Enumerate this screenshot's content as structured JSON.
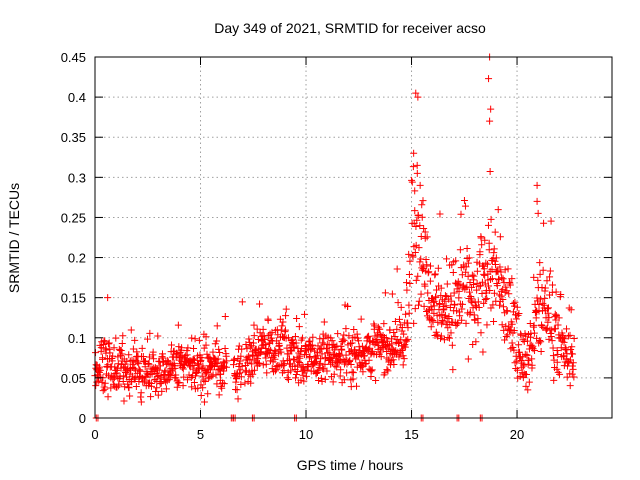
{
  "chart_data": {
    "type": "scatter",
    "title": "Day 349 of 2021, SRMTID for receiver acso",
    "xlabel": "GPS time / hours",
    "ylabel": "SRMTID / TECUs",
    "xlim": [
      0,
      24.5
    ],
    "ylim": [
      0,
      0.45
    ],
    "x_ticks": [
      0,
      5,
      10,
      15,
      20
    ],
    "x_tick_labels": [
      "0",
      "5",
      "10",
      "15",
      "20"
    ],
    "y_ticks": [
      0,
      0.05,
      0.1,
      0.15,
      0.2,
      0.25,
      0.3,
      0.35,
      0.4,
      0.45
    ],
    "y_tick_labels": [
      "0",
      "0.05",
      "0.1",
      "0.15",
      "0.2",
      "0.25",
      "0.3",
      "0.35",
      "0.4",
      "0.45"
    ],
    "grid": true,
    "marker": "+",
    "series": [
      {
        "name": "SRMTID",
        "color": "#ff0000",
        "profile": [
          {
            "t": 0.0,
            "base": 0.06,
            "spread": 0.025
          },
          {
            "t": 0.5,
            "base": 0.07,
            "spread": 0.035
          },
          {
            "t": 1.0,
            "base": 0.06,
            "spread": 0.025
          },
          {
            "t": 2.0,
            "base": 0.055,
            "spread": 0.025
          },
          {
            "t": 3.0,
            "base": 0.06,
            "spread": 0.03
          },
          {
            "t": 4.0,
            "base": 0.065,
            "spread": 0.03
          },
          {
            "t": 5.0,
            "base": 0.065,
            "spread": 0.03
          },
          {
            "t": 6.0,
            "base": 0.065,
            "spread": 0.03
          },
          {
            "t": 7.0,
            "base": 0.06,
            "spread": 0.03
          },
          {
            "t": 7.5,
            "base": 0.08,
            "spread": 0.03
          },
          {
            "t": 8.0,
            "base": 0.09,
            "spread": 0.03
          },
          {
            "t": 9.0,
            "base": 0.085,
            "spread": 0.03
          },
          {
            "t": 10.0,
            "base": 0.07,
            "spread": 0.03
          },
          {
            "t": 11.0,
            "base": 0.075,
            "spread": 0.03
          },
          {
            "t": 12.0,
            "base": 0.08,
            "spread": 0.03
          },
          {
            "t": 13.0,
            "base": 0.085,
            "spread": 0.03
          },
          {
            "t": 14.0,
            "base": 0.09,
            "spread": 0.03
          },
          {
            "t": 14.8,
            "base": 0.1,
            "spread": 0.04
          },
          {
            "t": 15.0,
            "base": 0.22,
            "spread": 0.09
          },
          {
            "t": 15.3,
            "base": 0.26,
            "spread": 0.09
          },
          {
            "t": 15.8,
            "base": 0.17,
            "spread": 0.05
          },
          {
            "t": 16.5,
            "base": 0.13,
            "spread": 0.05
          },
          {
            "t": 17.0,
            "base": 0.14,
            "spread": 0.05
          },
          {
            "t": 17.5,
            "base": 0.17,
            "spread": 0.06
          },
          {
            "t": 18.0,
            "base": 0.13,
            "spread": 0.05
          },
          {
            "t": 18.7,
            "base": 0.2,
            "spread": 0.08
          },
          {
            "t": 19.3,
            "base": 0.15,
            "spread": 0.05
          },
          {
            "t": 20.0,
            "base": 0.1,
            "spread": 0.04
          },
          {
            "t": 20.5,
            "base": 0.07,
            "spread": 0.03
          },
          {
            "t": 21.0,
            "base": 0.13,
            "spread": 0.06
          },
          {
            "t": 21.5,
            "base": 0.14,
            "spread": 0.06
          },
          {
            "t": 22.0,
            "base": 0.09,
            "spread": 0.035
          },
          {
            "t": 22.7,
            "base": 0.07,
            "spread": 0.03
          }
        ],
        "samples": 1500,
        "gaps": [
          [
            6.25,
            6.55
          ],
          [
            7.0,
            7.1
          ],
          [
            14.95,
            15.0
          ]
        ],
        "notable_points": [
          {
            "x": 0.6,
            "y": 0.15
          },
          {
            "x": 15.2,
            "y": 0.405
          },
          {
            "x": 15.3,
            "y": 0.4
          },
          {
            "x": 15.1,
            "y": 0.33
          },
          {
            "x": 18.7,
            "y": 0.45
          },
          {
            "x": 18.65,
            "y": 0.423
          },
          {
            "x": 18.75,
            "y": 0.385
          },
          {
            "x": 18.7,
            "y": 0.37
          },
          {
            "x": 20.95,
            "y": 0.29
          },
          {
            "x": 20.95,
            "y": 0.27
          },
          {
            "x": 21.0,
            "y": 0.255
          }
        ]
      }
    ],
    "baseline_points": [
      {
        "x": 0.1,
        "y": 0
      },
      {
        "x": 6.5,
        "y": 0
      },
      {
        "x": 6.6,
        "y": 0
      },
      {
        "x": 7.5,
        "y": 0
      },
      {
        "x": 9.5,
        "y": 0
      },
      {
        "x": 15.5,
        "y": 0
      },
      {
        "x": 17.2,
        "y": 0
      },
      {
        "x": 18.3,
        "y": 0
      }
    ]
  }
}
